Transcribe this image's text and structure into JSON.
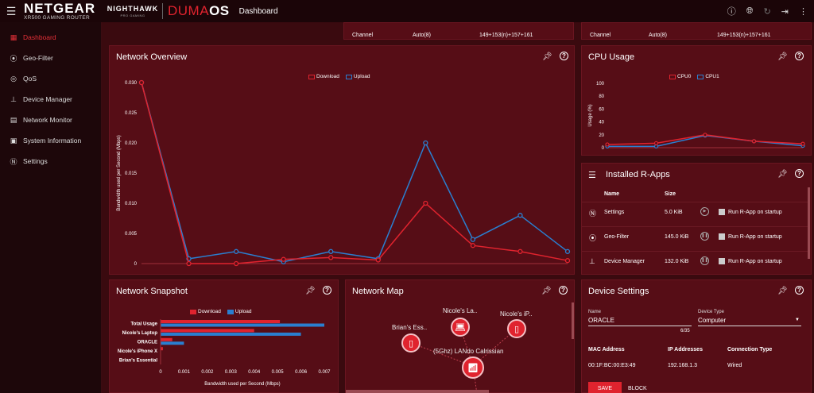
{
  "topbar": {
    "logo": "NETGEAR",
    "model": "XR500 GAMING ROUTER",
    "nighthawk": "NIGHTHAWK",
    "nighthawk_sub": "PRO GAMING",
    "os_prefix": "DUMA",
    "os_suffix": "OS",
    "title": "Dashboard"
  },
  "sidebar": {
    "items": [
      {
        "label": "Dashboard",
        "icon": "dashboard-icon"
      },
      {
        "label": "Geo-Filter",
        "icon": "geo-filter-icon"
      },
      {
        "label": "QoS",
        "icon": "qos-icon"
      },
      {
        "label": "Device Manager",
        "icon": "device-manager-icon"
      },
      {
        "label": "Network Monitor",
        "icon": "network-monitor-icon"
      },
      {
        "label": "System Information",
        "icon": "system-info-icon"
      },
      {
        "label": "Settings",
        "icon": "settings-icon"
      }
    ]
  },
  "wifi_strips": [
    {
      "label": "Channel",
      "mode": "Auto(8)",
      "value": "149+153(n)+157+161"
    },
    {
      "label": "Channel",
      "mode": "Auto(8)",
      "value": "149+153(n)+157+161"
    }
  ],
  "network_overview": {
    "title": "Network Overview",
    "legend": [
      "Download",
      "Upload"
    ],
    "ylabel": "Bandwidth used per Second (Mbps)",
    "chart_data": {
      "type": "line",
      "x": [
        0,
        1,
        2,
        3,
        4,
        5,
        6,
        7,
        8,
        9
      ],
      "ylim": [
        0,
        0.03
      ],
      "yticks": [
        "0.030",
        "0.025",
        "0.020",
        "0.015",
        "0.010",
        "0.005",
        "0"
      ],
      "series": [
        {
          "name": "Download",
          "color": "#e0232e",
          "values": [
            0.03,
            0.0,
            0.0,
            0.0007,
            0.001,
            0.0006,
            0.01,
            0.003,
            0.002,
            0.0005
          ]
        },
        {
          "name": "Upload",
          "color": "#2a7fd0",
          "values": [
            0.03,
            0.0008,
            0.002,
            0.0003,
            0.002,
            0.0008,
            0.02,
            0.004,
            0.008,
            0.002
          ]
        }
      ]
    }
  },
  "cpu_usage": {
    "title": "CPU Usage",
    "legend": [
      "CPU0",
      "CPU1"
    ],
    "ylabel": "Usage (%)",
    "chart_data": {
      "type": "line",
      "x": [
        0,
        1,
        2,
        3,
        4
      ],
      "ylim": [
        0,
        100
      ],
      "yticks": [
        "100",
        "80",
        "60",
        "40",
        "20",
        "0"
      ],
      "series": [
        {
          "name": "CPU0",
          "color": "#e0232e",
          "values": [
            5,
            7,
            20,
            10,
            6
          ]
        },
        {
          "name": "CPU1",
          "color": "#2a7fd0",
          "values": [
            2,
            2,
            19,
            10,
            3
          ]
        }
      ]
    }
  },
  "rapps": {
    "title": "Installed R-Apps",
    "col_name": "Name",
    "col_size": "Size",
    "items": [
      {
        "name": "Settings",
        "size": "5.0 KiB",
        "startup": "Run R-App on startup",
        "icon": "settings-icon"
      },
      {
        "name": "Geo-Filter",
        "size": "145.0 KiB",
        "startup": "Run R-App on startup",
        "icon": "geo-filter-icon"
      },
      {
        "name": "Device Manager",
        "size": "132.0 KiB",
        "startup": "Run R-App on startup",
        "icon": "device-manager-icon"
      }
    ]
  },
  "snapshot": {
    "title": "Network Snapshot",
    "legend": [
      "Download",
      "Upload"
    ],
    "xlabel": "Bandwidth used per Second (Mbps)",
    "chart_data": {
      "type": "bar",
      "orientation": "horizontal",
      "categories": [
        "Total Usage",
        "Nicole's Laptop",
        "ORACLE",
        "Nicole's iPhone X",
        "Brian's Essential"
      ],
      "xlim": [
        0,
        0.007
      ],
      "xticks": [
        "0",
        "0.001",
        "0.002",
        "0.003",
        "0.004",
        "0.005",
        "0.006",
        "0.007"
      ],
      "series": [
        {
          "name": "Download",
          "color": "#e0232e",
          "values": [
            0.0051,
            0.004,
            0.0005,
            0.0001,
            0
          ]
        },
        {
          "name": "Upload",
          "color": "#2a7fd0",
          "values": [
            0.007,
            0.006,
            0.001,
            0,
            0
          ]
        }
      ]
    }
  },
  "network_map": {
    "title": "Network Map",
    "center": "(5Ghz) LANdo Calrissian",
    "nodes": [
      {
        "label": "Nicole's La..",
        "icon": "laptop-icon"
      },
      {
        "label": "Nicole's iP..",
        "icon": "phone-icon"
      },
      {
        "label": "Brian's Ess..",
        "icon": "phone-icon"
      }
    ]
  },
  "device_settings": {
    "title": "Device Settings",
    "name_label": "Name",
    "name_value": "ORACLE",
    "char_count": "6/35",
    "type_label": "Device Type",
    "type_value": "Computer",
    "mac_label": "MAC Address",
    "mac_value": "00:1F:BC:00:E3:49",
    "ip_label": "IP Addresses",
    "ip_value": "192.168.1.3",
    "conn_label": "Connection Type",
    "conn_value": "Wired",
    "save": "SAVE",
    "block": "BLOCK"
  }
}
